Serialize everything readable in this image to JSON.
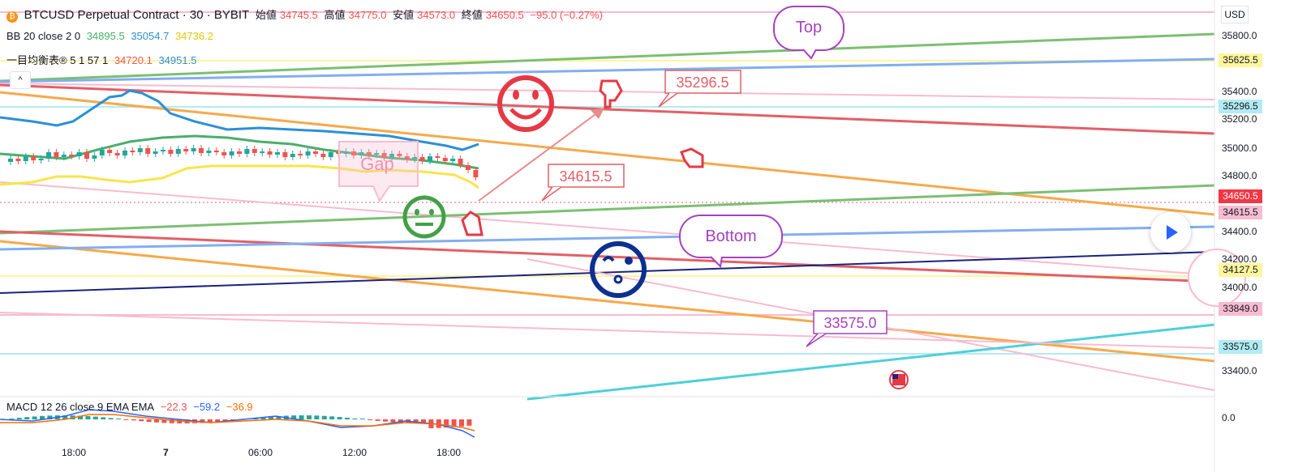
{
  "header": {
    "symbol": "BTCUSD Perpetual Contract · 30 · BYBIT",
    "ohlc_labels": [
      "始値",
      "高値",
      "安値",
      "終値"
    ],
    "ohlc_values": [
      "34745.5",
      "34775.0",
      "34573.0",
      "34650.5"
    ],
    "change": "−95.0 (−0.27%)",
    "bb_name": "BB 20 close 2 0",
    "bb_values": [
      "34895.5",
      "35054.7",
      "34736.2"
    ],
    "ichimoku_name": "一目均衡表® 5 1 57 1",
    "ichimoku_values": [
      "34720.1",
      "34951.5"
    ],
    "collapse_label": "^"
  },
  "macd": {
    "name": "MACD 12 26 close 9 EMA EMA",
    "values": [
      "−22.3",
      "−59.2",
      "−36.9"
    ],
    "zero": "0.0"
  },
  "price_axis": {
    "currency": "USD",
    "ticks": [
      "35800.0",
      "35400.0",
      "35200.0",
      "35000.0",
      "34800.0",
      "34400.0",
      "34200.0",
      "34000.0",
      "33400.0"
    ],
    "tags": [
      {
        "label": "35625.5",
        "color": "#fff59d"
      },
      {
        "label": "35296.5",
        "color": "#b2ebf2"
      },
      {
        "label": "34650.5",
        "color": "#f23645"
      },
      {
        "label": "34615.5",
        "color": "#f8bbd0"
      },
      {
        "label": "34127.5",
        "color": "#fff59d"
      },
      {
        "label": "33849.0",
        "color": "#f8bbd0"
      },
      {
        "label": "33575.0",
        "color": "#b2ebf2"
      }
    ]
  },
  "time_axis": [
    "18:00",
    "7",
    "06:00",
    "12:00",
    "18:00"
  ],
  "annotations": {
    "top": "Top",
    "bottom": "Bottom",
    "callout_a": "35296.5",
    "callout_b": "34615.5",
    "callout_c": "33575.0",
    "gap": "Gap"
  },
  "icons": [
    "bitcoin-icon",
    "smile-icon",
    "neutral-face-icon",
    "sad-face-icon",
    "pointing-hand-icon",
    "us-flag-icon",
    "play-icon"
  ],
  "colors": {
    "up": "#26a69a",
    "down": "#ef5350",
    "accent": "#2962ff"
  }
}
